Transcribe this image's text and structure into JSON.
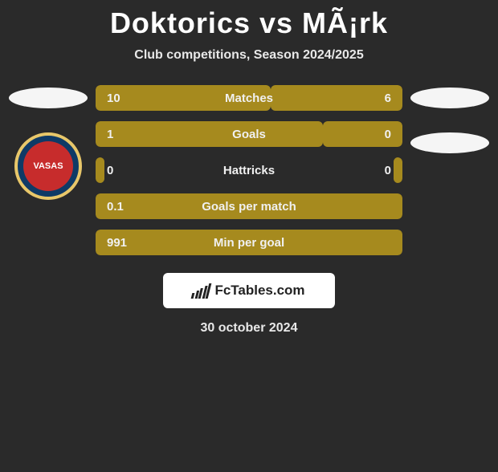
{
  "title": "Doktorics vs MÃ¡rk",
  "subtitle": "Club competitions, Season 2024/2025",
  "date": "30 october 2024",
  "footer_brand": "FcTables.com",
  "crest_text": "VASAS",
  "bar_colors": {
    "filled": "#a68a1e",
    "background": "#2a2a2a"
  },
  "text_color": "#f0f0f0",
  "stats": [
    {
      "label": "Matches",
      "left_value": "10",
      "right_value": "6",
      "left_pct": 57,
      "right_pct": 43
    },
    {
      "label": "Goals",
      "left_value": "1",
      "right_value": "0",
      "left_pct": 74,
      "right_pct": 26
    },
    {
      "label": "Hattricks",
      "left_value": "0",
      "right_value": "0",
      "left_pct": 3,
      "right_pct": 3
    },
    {
      "label": "Goals per match",
      "left_value": "0.1",
      "right_value": "",
      "left_pct": 100,
      "right_pct": 0
    },
    {
      "label": "Min per goal",
      "left_value": "991",
      "right_value": "",
      "left_pct": 100,
      "right_pct": 0
    }
  ]
}
